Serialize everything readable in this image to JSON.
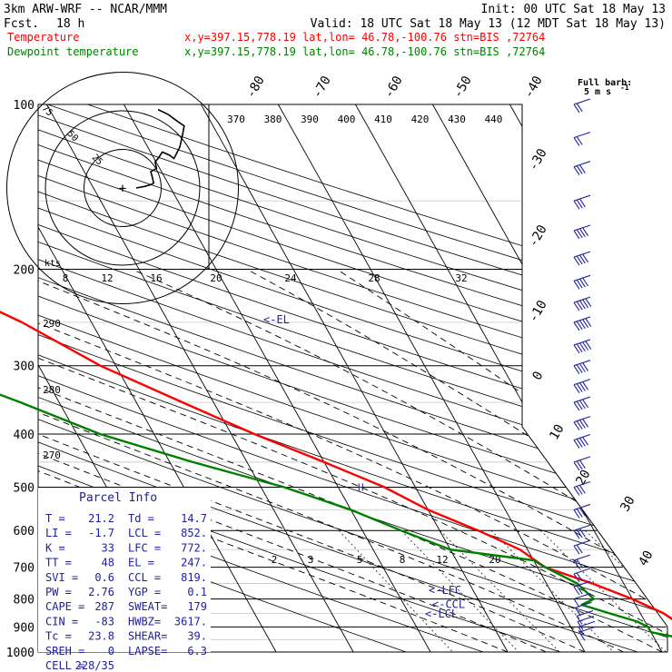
{
  "header": {
    "model": "3km ARW-WRF -- NCAR/MMM",
    "init": "Init: 00 UTC Sat 18 May 13",
    "fcst_label": "Fcst.",
    "fcst_value": "18 h",
    "valid": "Valid: 18 UTC Sat 18 May 13 (12 MDT Sat 18 May 13)",
    "series": [
      {
        "name": "Temperature",
        "location": "x,y=397.15,778.19   lat,lon= 46.78,-100.76   stn=BIS ,72764",
        "color": "#ff0000"
      },
      {
        "name": "Dewpoint temperature",
        "location": "x,y=397.15,778.19   lat,lon= 46.78,-100.76   stn=BIS ,72764",
        "color": "#008000"
      }
    ]
  },
  "colors": {
    "temperature": "#ff0000",
    "dewpoint": "#008000",
    "annotation": "#2020a0",
    "grid": "#000000"
  },
  "chart_data": {
    "type": "line",
    "subtype": "skew-T log-P sounding",
    "yaxis": {
      "scale": "log",
      "unit": "hPa",
      "ticks": [
        100,
        200,
        300,
        400,
        500,
        600,
        700,
        800,
        900,
        1000
      ]
    },
    "isotherm_labels": [
      -80,
      -70,
      -60,
      -50,
      -40,
      -30,
      -20,
      -10,
      0,
      10,
      20,
      30,
      40
    ],
    "theta_e_labels": [
      370,
      380,
      390,
      400,
      410,
      420,
      430,
      440
    ],
    "theta_labels": [
      290,
      280,
      270
    ],
    "mixing_ratio_upper": {
      "labels": [
        8,
        12,
        16,
        20,
        24,
        28,
        32
      ],
      "unit": "kts"
    },
    "mixing_ratio_lower": [
      2,
      3,
      5,
      8,
      12,
      20
    ],
    "series": [
      {
        "name": "Temperature",
        "points": [
          [
            100,
            -59
          ],
          [
            120,
            -60
          ],
          [
            140,
            -61
          ],
          [
            160,
            -64
          ],
          [
            180,
            -60
          ],
          [
            200,
            -57
          ],
          [
            230,
            -53
          ],
          [
            250,
            -49
          ],
          [
            300,
            -42
          ],
          [
            350,
            -34
          ],
          [
            400,
            -27
          ],
          [
            450,
            -20
          ],
          [
            500,
            -14
          ],
          [
            550,
            -10
          ],
          [
            600,
            -5
          ],
          [
            650,
            -1
          ],
          [
            700,
            1
          ],
          [
            750,
            6
          ],
          [
            800,
            10
          ],
          [
            850,
            13
          ],
          [
            880,
            14
          ],
          [
            900,
            17
          ],
          [
            920,
            19
          ],
          [
            940,
            21
          ]
        ]
      },
      {
        "name": "Dewpoint temperature",
        "points": [
          [
            100,
            -91
          ],
          [
            120,
            -87
          ],
          [
            140,
            -80
          ],
          [
            160,
            -82
          ],
          [
            180,
            -84
          ],
          [
            200,
            -78
          ],
          [
            230,
            -70
          ],
          [
            250,
            -69
          ],
          [
            300,
            -65
          ],
          [
            350,
            -55
          ],
          [
            400,
            -47
          ],
          [
            450,
            -37
          ],
          [
            500,
            -27
          ],
          [
            550,
            -20
          ],
          [
            600,
            -15
          ],
          [
            650,
            -10
          ],
          [
            680,
            0
          ],
          [
            700,
            1
          ],
          [
            750,
            4
          ],
          [
            800,
            5
          ],
          [
            820,
            3
          ],
          [
            850,
            6
          ],
          [
            880,
            9
          ],
          [
            900,
            10
          ],
          [
            920,
            10
          ],
          [
            940,
            13
          ]
        ]
      }
    ],
    "levels": [
      {
        "name": "EL",
        "label": "<-EL",
        "pressure": 247
      },
      {
        "name": "LFC",
        "label": "<-LFC",
        "pressure": 772
      },
      {
        "name": "CCL",
        "label": "<-CCL",
        "pressure": 819
      },
      {
        "name": "LCL",
        "label": "<-LCL",
        "pressure": 852
      }
    ],
    "parcel_marker": {
      "label": "H",
      "pressure": 500
    },
    "hodograph": {
      "ring_labels": [
        "25",
        "50",
        "75"
      ],
      "unit_label": "kts",
      "points": [
        [
          0,
          0
        ],
        [
          6,
          1
        ],
        [
          10,
          2
        ],
        [
          12,
          3
        ],
        [
          11,
          7
        ],
        [
          10,
          10
        ],
        [
          14,
          12
        ],
        [
          13,
          16
        ],
        [
          15,
          18
        ],
        [
          18,
          22
        ],
        [
          23,
          20
        ],
        [
          26,
          18
        ],
        [
          30,
          25
        ],
        [
          32,
          33
        ],
        [
          33,
          38
        ],
        [
          28,
          41
        ],
        [
          22,
          45
        ],
        [
          15,
          48
        ]
      ]
    },
    "wind_barbs": {
      "label": "Full barb:",
      "unit": "5 m s",
      "superscript": "-1",
      "winds": [
        [
          100,
          10
        ],
        [
          115,
          12
        ],
        [
          130,
          14
        ],
        [
          150,
          16
        ],
        [
          170,
          18
        ],
        [
          190,
          20
        ],
        [
          210,
          22
        ],
        [
          230,
          24
        ],
        [
          250,
          25
        ],
        [
          275,
          24
        ],
        [
          300,
          22
        ],
        [
          325,
          22
        ],
        [
          350,
          20
        ],
        [
          380,
          18
        ],
        [
          410,
          18
        ],
        [
          450,
          17
        ],
        [
          500,
          15
        ],
        [
          550,
          14
        ],
        [
          600,
          14
        ],
        [
          640,
          12
        ],
        [
          680,
          11
        ],
        [
          720,
          9
        ],
        [
          760,
          8
        ],
        [
          800,
          6
        ],
        [
          830,
          5
        ],
        [
          860,
          4
        ],
        [
          880,
          3
        ],
        [
          900,
          3
        ],
        [
          920,
          2
        ]
      ]
    }
  },
  "parcel_info": {
    "title": "Parcel Info",
    "rows": [
      [
        "T  =",
        "21.2",
        "Td =",
        "14.7"
      ],
      [
        "LI =",
        "-1.7",
        "LCL =",
        "852."
      ],
      [
        "K  =",
        "33",
        "LFC =",
        "772."
      ],
      [
        "TT =",
        "48",
        "EL  =",
        "247."
      ],
      [
        "SVI =",
        "0.6",
        "CCL =",
        "819."
      ],
      [
        "PW =",
        "2.76",
        "YGP =",
        "0.1"
      ],
      [
        "CAPE =",
        "287",
        "SWEAT=",
        "179"
      ],
      [
        "CIN  =",
        "-83",
        "HWBZ=",
        "3617."
      ],
      [
        "Tc =",
        "23.8",
        "SHEAR=",
        "39."
      ],
      [
        "SREH =",
        "0",
        "LAPSE=",
        "6.3"
      ],
      [
        "CELL =",
        "228/35",
        "",
        ""
      ]
    ]
  }
}
